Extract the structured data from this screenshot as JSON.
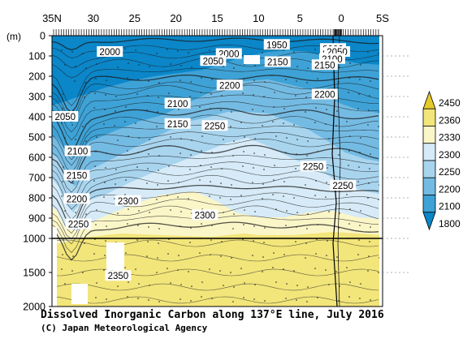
{
  "chart_data": {
    "type": "heatmap",
    "title": "Dissolved Inorganic Carbon along 137°E line, July 2016",
    "credit": "(C) Japan Meteorological Agency",
    "x_tick_labels": [
      "35N",
      "30",
      "25",
      "20",
      "15",
      "10",
      "5",
      "0",
      "5S"
    ],
    "x_tick_lats": [
      35,
      30,
      25,
      20,
      15,
      10,
      5,
      0,
      -5
    ],
    "xlim": [
      35,
      -5
    ],
    "y_unit_label": "(m)",
    "y_upper_ticks": [
      "0",
      "100",
      "200",
      "300",
      "400",
      "500",
      "600",
      "700",
      "800",
      "900",
      "1000"
    ],
    "y_lower_ticks": [
      "1500",
      "2000"
    ],
    "ylim": [
      0,
      2000
    ],
    "y_break": 1000,
    "colorbar": {
      "labels": [
        "2450",
        "2360",
        "2330",
        "2300",
        "2250",
        "2200",
        "2100",
        "1800"
      ],
      "colors": [
        "#e6c92a",
        "#f2e57a",
        "#fbf6c8",
        "#d6ebf7",
        "#a8d4ee",
        "#74bbe3",
        "#3ea2d6",
        "#0b86c8"
      ]
    },
    "contour_labels": [
      {
        "text": "2000",
        "lat": 28.0,
        "depth": 80
      },
      {
        "text": "1950",
        "lat": 7.8,
        "depth": 45
      },
      {
        "text": "2000",
        "lat": 13.6,
        "depth": 90
      },
      {
        "text": "2050",
        "lat": 15.5,
        "depth": 125
      },
      {
        "text": "2150",
        "lat": 7.7,
        "depth": 130
      },
      {
        "text": "2000",
        "lat": 1.0,
        "depth": 65
      },
      {
        "text": "2050",
        "lat": 0.5,
        "depth": 80
      },
      {
        "text": "2100",
        "lat": 1.1,
        "depth": 115
      },
      {
        "text": "2150",
        "lat": 2.0,
        "depth": 145
      },
      {
        "text": "2200",
        "lat": 13.5,
        "depth": 245
      },
      {
        "text": "2200",
        "lat": 2.0,
        "depth": 290
      },
      {
        "text": "2100",
        "lat": 19.8,
        "depth": 335
      },
      {
        "text": "2050",
        "lat": 33.4,
        "depth": 400
      },
      {
        "text": "2150",
        "lat": 19.8,
        "depth": 435
      },
      {
        "text": "2250",
        "lat": 15.3,
        "depth": 445
      },
      {
        "text": "2100",
        "lat": 31.9,
        "depth": 570
      },
      {
        "text": "2150",
        "lat": 32.0,
        "depth": 690
      },
      {
        "text": "2250",
        "lat": 3.4,
        "depth": 645
      },
      {
        "text": "2250",
        "lat": -0.2,
        "depth": 740
      },
      {
        "text": "2200",
        "lat": 32.0,
        "depth": 805
      },
      {
        "text": "2300",
        "lat": 25.8,
        "depth": 815
      },
      {
        "text": "2300",
        "lat": 16.5,
        "depth": 885
      },
      {
        "text": "2250",
        "lat": 31.8,
        "depth": 930
      },
      {
        "text": "2350",
        "lat": 27.0,
        "depth": 1550
      }
    ]
  }
}
